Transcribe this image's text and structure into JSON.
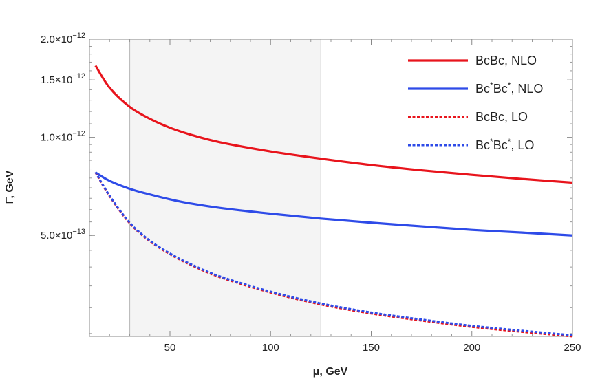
{
  "chart_data": {
    "type": "line",
    "title": "",
    "xlabel": "μ, GeV",
    "ylabel": "Γ, GeV",
    "xlim": [
      10,
      250
    ],
    "ylim": [
      2.45e-13,
      2e-12
    ],
    "y_scale": "log",
    "grid": false,
    "legend_position": "top-right",
    "shaded_band": {
      "x_from": 30,
      "x_to": 125,
      "color": "#f4f4f4",
      "edge_color": "#bdbdbd"
    },
    "x_ticks": [
      {
        "value": 50,
        "label": "50"
      },
      {
        "value": 100,
        "label": "100"
      },
      {
        "value": 150,
        "label": "150"
      },
      {
        "value": 200,
        "label": "200"
      },
      {
        "value": 250,
        "label": "250"
      }
    ],
    "y_ticks": [
      {
        "value": 5e-13,
        "mantissa": "5.0",
        "exponent": "−13"
      },
      {
        "value": 1e-12,
        "mantissa": "1.0",
        "exponent": "−12"
      },
      {
        "value": 1.5e-12,
        "mantissa": "1.5",
        "exponent": "−12"
      },
      {
        "value": 2e-12,
        "mantissa": "2.0",
        "exponent": "−12"
      }
    ],
    "x": [
      13,
      20,
      30,
      40,
      50,
      60,
      75,
      100,
      125,
      150,
      175,
      200,
      225,
      250
    ],
    "series": [
      {
        "name": "BcBc, NLO",
        "color": "#e8141c",
        "dash": "solid",
        "values": [
          1.66e-12,
          1.42e-12,
          1.24e-12,
          1.14e-12,
          1.07e-12,
          1.02e-12,
          9.65e-13,
          9.05e-13,
          8.6e-13,
          8.22e-13,
          7.92e-13,
          7.67e-13,
          7.45e-13,
          7.26e-13
        ]
      },
      {
        "name": "Bc*Bc*, NLO",
        "color": "#2e4be8",
        "dash": "solid",
        "values": [
          7.8e-13,
          7.35e-13,
          6.95e-13,
          6.68e-13,
          6.45e-13,
          6.27e-13,
          6.07e-13,
          5.83e-13,
          5.63e-13,
          5.47e-13,
          5.33e-13,
          5.2e-13,
          5.1e-13,
          5e-13
        ]
      },
      {
        "name": "BcBc, LO",
        "color": "#e8141c",
        "dash": "dashed",
        "values": [
          7.8e-13,
          6.6e-13,
          5.45e-13,
          4.8e-13,
          4.38e-13,
          4.07e-13,
          3.72e-13,
          3.34e-13,
          3.07e-13,
          2.88e-13,
          2.74e-13,
          2.62e-13,
          2.53e-13,
          2.45e-13
        ]
      },
      {
        "name": "Bc*Bc*, LO",
        "color": "#2e4be8",
        "dash": "dashed",
        "values": [
          7.82e-13,
          6.62e-13,
          5.47e-13,
          4.82e-13,
          4.4e-13,
          4.09e-13,
          3.74e-13,
          3.36e-13,
          3.09e-13,
          2.9e-13,
          2.76e-13,
          2.64e-13,
          2.55e-13,
          2.47e-13
        ]
      }
    ],
    "legend": [
      {
        "base1": "Bc",
        "sup1": "",
        "base2": "Bc",
        "sup2": "",
        "suffix": ", NLO",
        "color": "#e8141c",
        "dash": "solid"
      },
      {
        "base1": "Bc",
        "sup1": "*",
        "base2": "Bc",
        "sup2": "*",
        "suffix": ", NLO",
        "color": "#2e4be8",
        "dash": "solid"
      },
      {
        "base1": "Bc",
        "sup1": "",
        "base2": "Bc",
        "sup2": "",
        "suffix": ", LO",
        "color": "#e8141c",
        "dash": "dashed"
      },
      {
        "base1": "Bc",
        "sup1": "*",
        "base2": "Bc",
        "sup2": "*",
        "suffix": ", LO",
        "color": "#2e4be8",
        "dash": "dashed"
      }
    ]
  }
}
